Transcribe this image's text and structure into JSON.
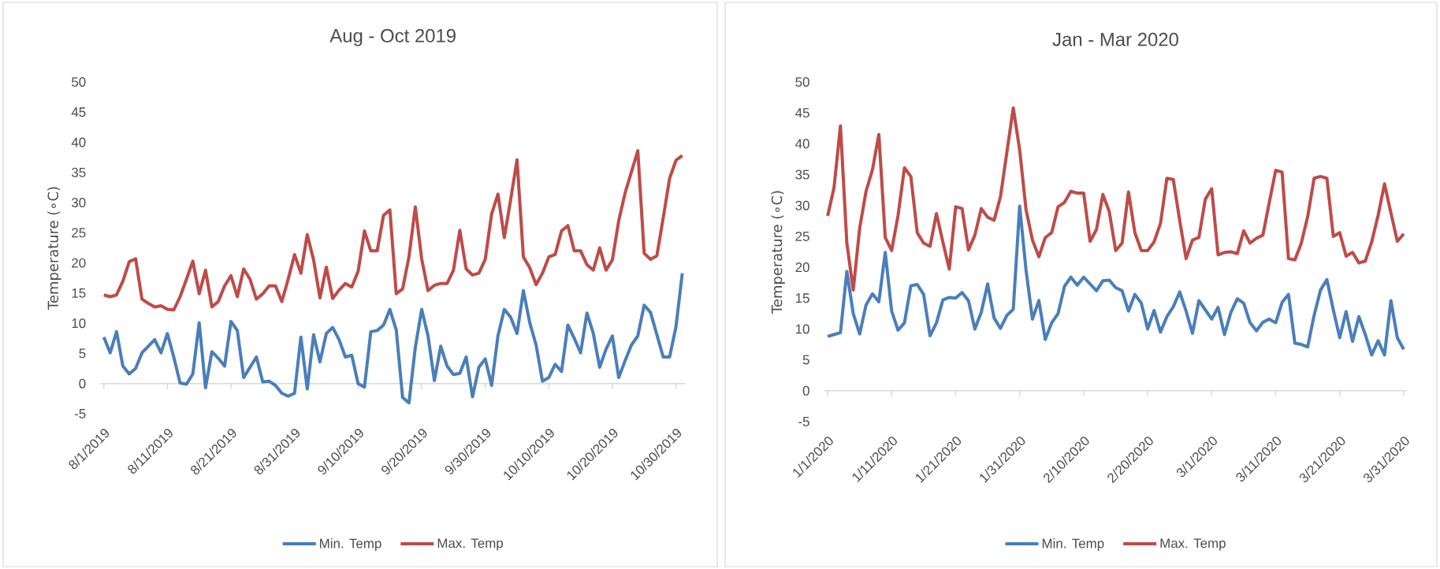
{
  "chart_data": [
    {
      "type": "line",
      "title": "Aug - Oct 2019",
      "ylabel": "Temperature (∘C)",
      "categories": [
        "8/1/2019",
        null,
        null,
        null,
        null,
        null,
        null,
        null,
        null,
        null,
        "8/11/2019",
        null,
        null,
        null,
        null,
        null,
        null,
        null,
        null,
        null,
        "8/21/2019",
        null,
        null,
        null,
        null,
        null,
        null,
        null,
        null,
        null,
        "8/31/2019",
        null,
        null,
        null,
        null,
        null,
        null,
        null,
        null,
        null,
        "9/10/2019",
        null,
        null,
        null,
        null,
        null,
        null,
        null,
        null,
        null,
        "9/20/2019",
        null,
        null,
        null,
        null,
        null,
        null,
        null,
        null,
        null,
        "9/30/2019",
        null,
        null,
        null,
        null,
        null,
        null,
        null,
        null,
        null,
        "10/10/2019",
        null,
        null,
        null,
        null,
        null,
        null,
        null,
        null,
        null,
        "10/20/2019",
        null,
        null,
        null,
        null,
        null,
        null,
        null,
        null,
        null,
        "10/30/2019",
        null
      ],
      "series": [
        {
          "name": "Min. Temp",
          "color": "#4a7ebb",
          "values": [
            7.7,
            5.1,
            8.6,
            2.9,
            1.6,
            2.5,
            5.1,
            6.2,
            7.3,
            5.1,
            8.3,
            4.4,
            0.1,
            -0.1,
            1.6,
            10.1,
            -0.7,
            5.3,
            4.2,
            2.9,
            10.3,
            8.8,
            1.0,
            2.7,
            4.4,
            0.3,
            0.4,
            -0.3,
            -1.6,
            -2.1,
            -1.6,
            7.7,
            -0.9,
            8.1,
            3.6,
            8.3,
            9.3,
            7.3,
            4.4,
            4.7,
            0.0,
            -0.6,
            8.6,
            8.8,
            9.7,
            12.3,
            8.9,
            -2.3,
            -3.2,
            6.0,
            12.3,
            7.9,
            0.5,
            6.2,
            2.9,
            1.5,
            1.7,
            4.4,
            -2.2,
            2.7,
            4.1,
            -0.3,
            7.9,
            12.3,
            11.0,
            8.3,
            15.4,
            10.1,
            6.4,
            0.4,
            1.0,
            3.2,
            2.0,
            9.7,
            7.5,
            5.1,
            11.7,
            8.3,
            2.7,
            5.7,
            7.9,
            1.0,
            3.8,
            6.4,
            7.9,
            13.0,
            11.8,
            8.1,
            4.4,
            4.4,
            9.4,
            18.3
          ]
        },
        {
          "name": "Max. Temp",
          "color": "#be4b48",
          "values": [
            14.7,
            14.4,
            14.7,
            17.0,
            20.2,
            20.7,
            14.0,
            13.3,
            12.7,
            12.9,
            12.3,
            12.2,
            14.4,
            17.3,
            20.3,
            14.9,
            18.8,
            12.7,
            13.6,
            16.2,
            17.9,
            14.4,
            19.0,
            17.3,
            14.0,
            14.9,
            16.2,
            16.2,
            13.6,
            17.3,
            21.4,
            18.3,
            24.7,
            20.5,
            14.2,
            19.3,
            14.1,
            15.5,
            16.6,
            16.0,
            18.6,
            25.3,
            22.0,
            22.0,
            27.9,
            28.8,
            14.9,
            15.7,
            21.0,
            29.3,
            20.7,
            15.4,
            16.3,
            16.6,
            16.6,
            18.8,
            25.4,
            19.0,
            18.0,
            18.3,
            20.6,
            28.1,
            31.4,
            24.2,
            30.5,
            37.1,
            21.0,
            19.2,
            16.4,
            18.3,
            21.0,
            21.4,
            25.3,
            26.2,
            22.0,
            22.0,
            19.7,
            18.8,
            22.5,
            18.8,
            20.5,
            27.0,
            31.6,
            35.1,
            38.6,
            21.6,
            20.6,
            21.2,
            27.5,
            34.0,
            37.0,
            37.8
          ]
        }
      ],
      "ylim": [
        -5,
        50
      ],
      "yticks": [
        -5,
        0,
        5,
        10,
        15,
        20,
        25,
        30,
        35,
        40,
        45,
        50
      ],
      "legend": "bottom"
    },
    {
      "type": "line",
      "title": "Jan - Mar 2020",
      "ylabel": "Temperature (∘C)",
      "categories": [
        "1/1/2020",
        null,
        null,
        null,
        null,
        null,
        null,
        null,
        null,
        null,
        "1/11/2020",
        null,
        null,
        null,
        null,
        null,
        null,
        null,
        null,
        null,
        "1/21/2020",
        null,
        null,
        null,
        null,
        null,
        null,
        null,
        null,
        null,
        "1/31/2020",
        null,
        null,
        null,
        null,
        null,
        null,
        null,
        null,
        null,
        "2/10/2020",
        null,
        null,
        null,
        null,
        null,
        null,
        null,
        null,
        null,
        "2/20/2020",
        null,
        null,
        null,
        null,
        null,
        null,
        null,
        null,
        null,
        "3/1/2020",
        null,
        null,
        null,
        null,
        null,
        null,
        null,
        null,
        null,
        "3/11/2020",
        null,
        null,
        null,
        null,
        null,
        null,
        null,
        null,
        null,
        "3/21/2020",
        null,
        null,
        null,
        null,
        null,
        null,
        null,
        null,
        null,
        "3/31/2020"
      ],
      "series": [
        {
          "name": "Min. Temp",
          "color": "#4a7ebb",
          "values": [
            8.8,
            9.1,
            9.4,
            19.3,
            12.5,
            9.2,
            13.9,
            15.7,
            14.4,
            22.4,
            12.9,
            9.8,
            11.0,
            17.0,
            17.2,
            15.6,
            8.9,
            11.0,
            14.7,
            15.1,
            15.0,
            15.9,
            14.6,
            10.0,
            12.7,
            17.3,
            11.8,
            10.1,
            12.2,
            13.2,
            29.9,
            19.5,
            11.6,
            14.6,
            8.3,
            11.0,
            12.5,
            16.9,
            18.4,
            17.1,
            18.4,
            17.3,
            16.2,
            17.8,
            17.9,
            16.7,
            16.2,
            12.9,
            15.6,
            14.2,
            10.0,
            13.0,
            9.5,
            12.0,
            13.6,
            16.0,
            12.9,
            9.3,
            14.6,
            13.1,
            11.6,
            13.5,
            9.1,
            12.7,
            14.9,
            14.2,
            11.0,
            9.7,
            11.1,
            11.6,
            11.0,
            14.3,
            15.6,
            7.7,
            7.5,
            7.1,
            12.2,
            16.3,
            18.0,
            13.1,
            8.6,
            12.8,
            8.0,
            12.0,
            9.1,
            5.8,
            8.1,
            5.8,
            14.6,
            8.6,
            6.7
          ]
        },
        {
          "name": "Max. Temp",
          "color": "#be4b48",
          "values": [
            28.3,
            32.9,
            42.9,
            23.9,
            16.3,
            26.3,
            32.3,
            35.8,
            41.5,
            24.8,
            22.7,
            28.4,
            36.1,
            34.7,
            25.6,
            23.9,
            23.4,
            28.7,
            24.1,
            19.7,
            29.8,
            29.5,
            22.8,
            25.2,
            29.5,
            28.1,
            27.6,
            31.4,
            38.6,
            45.8,
            39.0,
            29.3,
            24.4,
            21.7,
            24.8,
            25.6,
            29.8,
            30.5,
            32.3,
            32.0,
            32.0,
            24.2,
            26.1,
            31.8,
            29.0,
            22.7,
            23.9,
            32.2,
            25.6,
            22.7,
            22.7,
            24.1,
            27.1,
            34.4,
            34.2,
            27.6,
            21.4,
            24.4,
            24.8,
            31.0,
            32.7,
            22.0,
            22.4,
            22.5,
            22.2,
            25.9,
            23.9,
            24.7,
            25.2,
            30.5,
            35.7,
            35.4,
            21.4,
            21.2,
            23.9,
            28.2,
            34.4,
            34.7,
            34.4,
            25.0,
            25.6,
            21.8,
            22.4,
            20.7,
            21.0,
            24.1,
            28.4,
            33.5,
            28.8,
            24.2,
            25.4
          ]
        }
      ],
      "ylim": [
        -5,
        50
      ],
      "yticks": [
        -5,
        0,
        5,
        10,
        15,
        20,
        25,
        30,
        35,
        40,
        45,
        50
      ],
      "legend": "bottom"
    }
  ]
}
